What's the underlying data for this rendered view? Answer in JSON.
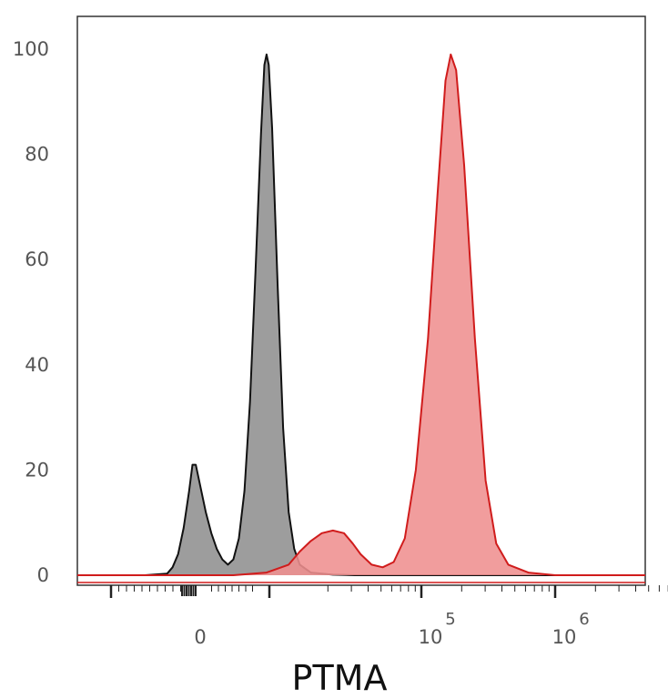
{
  "chart_data": {
    "type": "area",
    "title": "",
    "xlabel": "PTMA",
    "ylabel": "",
    "x_scale": "biexponential",
    "ylim": [
      0,
      100
    ],
    "y_ticks": [
      "0",
      "20",
      "40",
      "60",
      "80",
      "100"
    ],
    "x_ticks": [
      {
        "label": "0",
        "exp": ""
      },
      {
        "label": "10",
        "exp": "5"
      },
      {
        "label": "10",
        "exp": "6"
      }
    ],
    "grid": false,
    "legend": "none",
    "series": [
      {
        "color": "#8f8f8f",
        "stroke": "#111111",
        "points": [
          [
            -0.5,
            0
          ],
          [
            -0.3,
            0.3
          ],
          [
            -0.25,
            1.5
          ],
          [
            -0.2,
            4
          ],
          [
            -0.15,
            9
          ],
          [
            -0.1,
            16
          ],
          [
            -0.07,
            21
          ],
          [
            -0.04,
            21
          ],
          [
            0.0,
            17
          ],
          [
            0.05,
            12
          ],
          [
            0.1,
            8
          ],
          [
            0.15,
            5
          ],
          [
            0.2,
            3
          ],
          [
            0.25,
            2
          ],
          [
            0.3,
            3
          ],
          [
            0.35,
            7
          ],
          [
            0.4,
            16
          ],
          [
            0.45,
            33
          ],
          [
            0.5,
            58
          ],
          [
            0.55,
            84
          ],
          [
            0.58,
            97
          ],
          [
            0.6,
            99
          ],
          [
            0.62,
            97
          ],
          [
            0.65,
            85
          ],
          [
            0.7,
            55
          ],
          [
            0.75,
            28
          ],
          [
            0.8,
            12
          ],
          [
            0.85,
            5
          ],
          [
            0.9,
            2
          ],
          [
            1.0,
            0.5
          ],
          [
            1.2,
            0.1
          ],
          [
            1.4,
            0
          ]
        ]
      },
      {
        "color": "#ef8f8f",
        "stroke": "#d01c1c",
        "points": [
          [
            0.3,
            0
          ],
          [
            0.6,
            0.5
          ],
          [
            0.8,
            2
          ],
          [
            0.9,
            4.5
          ],
          [
            1.0,
            6.5
          ],
          [
            1.1,
            8
          ],
          [
            1.2,
            8.5
          ],
          [
            1.3,
            8
          ],
          [
            1.38,
            6
          ],
          [
            1.45,
            4
          ],
          [
            1.55,
            2
          ],
          [
            1.65,
            1.5
          ],
          [
            1.75,
            2.5
          ],
          [
            1.85,
            7
          ],
          [
            1.95,
            20
          ],
          [
            2.05,
            45
          ],
          [
            2.12,
            72
          ],
          [
            2.18,
            94
          ],
          [
            2.22,
            99
          ],
          [
            2.26,
            96
          ],
          [
            2.32,
            78
          ],
          [
            2.4,
            45
          ],
          [
            2.48,
            18
          ],
          [
            2.56,
            6
          ],
          [
            2.65,
            2
          ],
          [
            2.8,
            0.5
          ],
          [
            3.0,
            0
          ]
        ]
      }
    ]
  }
}
